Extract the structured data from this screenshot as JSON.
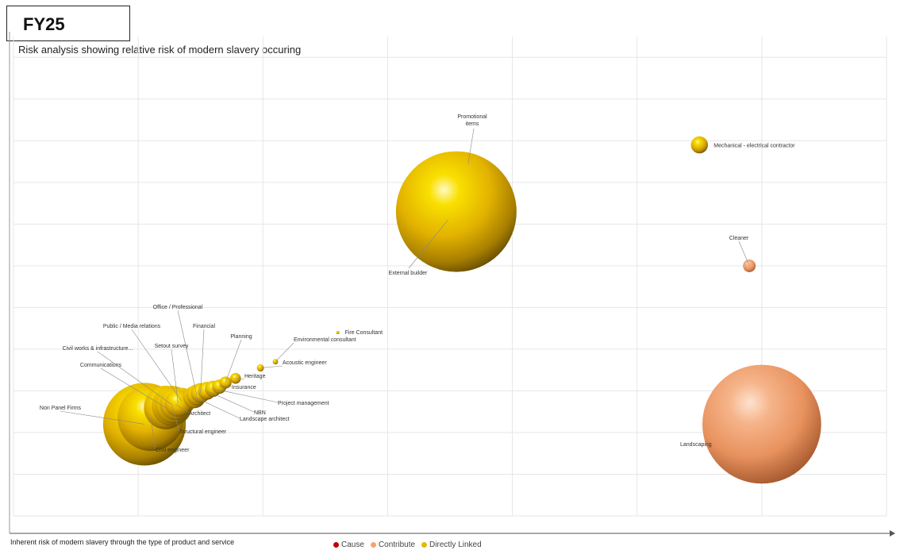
{
  "header": {
    "fy_label": "FY25"
  },
  "chart_data": {
    "type": "bubble",
    "title": "Risk analysis showing relative risk of modern slavery occuring",
    "xlabel": "Inherent risk of modern slavery through the type of product and service",
    "ylabel": "",
    "xlim": [
      0,
      7
    ],
    "ylim": [
      0,
      11.5
    ],
    "grid": true,
    "legend_position": "bottom",
    "legend": [
      {
        "name": "Cause",
        "color": "#c00000"
      },
      {
        "name": "Contribute",
        "color": "#f4a46c"
      },
      {
        "name": "Directly Linked",
        "color": "#e6b800"
      }
    ],
    "series": [
      {
        "name": "Directly Linked",
        "color": "#e6b800",
        "points": [
          {
            "label": "Promotional items",
            "x": 3.55,
            "y": 7.3,
            "size": 100
          },
          {
            "label": "Mechanical - electrical contractor",
            "x": 5.5,
            "y": 8.9,
            "size": 2
          },
          {
            "label": "Fire Consultant",
            "x": 2.6,
            "y": 4.4,
            "size": 0.05
          },
          {
            "label": "Environmental consultant",
            "x": 2.1,
            "y": 3.7,
            "size": 0.2
          },
          {
            "label": "Acoustic engineer",
            "x": 1.98,
            "y": 3.55,
            "size": 0.35
          },
          {
            "label": "Heritage",
            "x": 1.78,
            "y": 3.3,
            "size": 0.8
          },
          {
            "label": "Planning",
            "x": 1.7,
            "y": 3.2,
            "size": 1
          },
          {
            "label": "Insurance",
            "x": 1.65,
            "y": 3.1,
            "size": 1.4
          },
          {
            "label": "Project management",
            "x": 1.6,
            "y": 3.05,
            "size": 1.8
          },
          {
            "label": "NBN",
            "x": 1.55,
            "y": 3.0,
            "size": 2.2
          },
          {
            "label": "Financial",
            "x": 1.5,
            "y": 2.95,
            "size": 2.7
          },
          {
            "label": "Office / Professional",
            "x": 1.47,
            "y": 2.9,
            "size": 3
          },
          {
            "label": "Landscape architect",
            "x": 1.45,
            "y": 2.85,
            "size": 3.4
          },
          {
            "label": "Public / Media relations",
            "x": 1.35,
            "y": 2.75,
            "size": 5
          },
          {
            "label": "Setout survey",
            "x": 1.32,
            "y": 2.7,
            "size": 5
          },
          {
            "label": "Architect",
            "x": 1.3,
            "y": 2.68,
            "size": 7
          },
          {
            "label": "Civil works & infrastructure...",
            "x": 1.28,
            "y": 2.65,
            "size": 9
          },
          {
            "label": "Structural engineer",
            "x": 1.27,
            "y": 2.64,
            "size": 11
          },
          {
            "label": "Communications",
            "x": 1.22,
            "y": 2.6,
            "size": 13
          },
          {
            "label": "Non Panel Firms",
            "x": 1.05,
            "y": 2.2,
            "size": 47
          },
          {
            "label": "Civil engineer",
            "x": 1.1,
            "y": 2.35,
            "size": 30
          }
        ]
      },
      {
        "name": "Contribute",
        "color": "#f4a46c",
        "points": [
          {
            "label": "Landscaping",
            "x": 6.0,
            "y": 2.2,
            "size": 97
          },
          {
            "label": "Cleaner",
            "x": 5.9,
            "y": 6.0,
            "size": 1.1
          }
        ]
      }
    ],
    "labels_text": {
      "promotional": [
        "Promotional",
        "items"
      ],
      "external_builder": "External builder"
    }
  }
}
